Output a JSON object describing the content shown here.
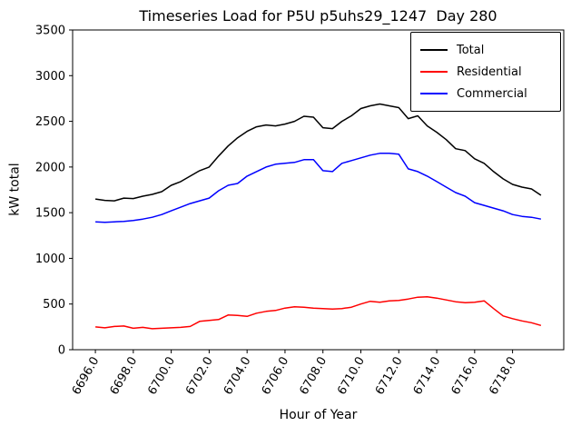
{
  "chart_data": {
    "type": "line",
    "title": "Timeseries Load for P5U p5uhs29_1247  Day 280",
    "xlabel": "Hour of Year",
    "ylabel": "kW total",
    "xlim": [
      6694.8,
      6720.7
    ],
    "ylim": [
      0,
      3500
    ],
    "grid": false,
    "legend_position": "upper right",
    "xticks": [
      6696,
      6698,
      6700,
      6702,
      6704,
      6706,
      6708,
      6710,
      6712,
      6714,
      6716,
      6718
    ],
    "xtick_labels": [
      "6696.0",
      "6698.0",
      "6700.0",
      "6702.0",
      "6704.0",
      "6706.0",
      "6708.0",
      "6710.0",
      "6712.0",
      "6714.0",
      "6716.0",
      "6718.0"
    ],
    "yticks": [
      0,
      500,
      1000,
      1500,
      2000,
      2500,
      3000,
      3500
    ],
    "ytick_labels": [
      "0",
      "500",
      "1000",
      "1500",
      "2000",
      "2500",
      "3000",
      "3500"
    ],
    "x_start": 6696.0,
    "x_step": 0.5,
    "series": [
      {
        "name": "Total",
        "color": "#000000",
        "values": [
          1650,
          1635,
          1630,
          1660,
          1655,
          1680,
          1700,
          1730,
          1800,
          1840,
          1900,
          1960,
          2000,
          2120,
          2230,
          2320,
          2390,
          2440,
          2460,
          2450,
          2470,
          2500,
          2555,
          2545,
          2430,
          2420,
          2500,
          2560,
          2640,
          2670,
          2690,
          2670,
          2650,
          2530,
          2560,
          2450,
          2380,
          2300,
          2200,
          2180,
          2090,
          2040,
          1950,
          1870,
          1810,
          1780,
          1760,
          1690
        ]
      },
      {
        "name": "Residential",
        "color": "#ff0000",
        "values": [
          250,
          240,
          255,
          260,
          235,
          245,
          230,
          235,
          240,
          245,
          255,
          310,
          320,
          330,
          380,
          375,
          365,
          400,
          420,
          430,
          455,
          470,
          465,
          455,
          450,
          445,
          450,
          465,
          500,
          530,
          520,
          535,
          540,
          555,
          575,
          580,
          565,
          545,
          525,
          515,
          520,
          535,
          450,
          370,
          340,
          315,
          295,
          265
        ]
      },
      {
        "name": "Commercial",
        "color": "#0000ff",
        "values": [
          1400,
          1395,
          1400,
          1405,
          1415,
          1430,
          1450,
          1480,
          1520,
          1560,
          1600,
          1630,
          1660,
          1740,
          1800,
          1820,
          1900,
          1950,
          2000,
          2030,
          2040,
          2050,
          2080,
          2080,
          1960,
          1950,
          2040,
          2070,
          2100,
          2130,
          2150,
          2150,
          2140,
          1980,
          1950,
          1900,
          1840,
          1780,
          1720,
          1680,
          1610,
          1580,
          1550,
          1520,
          1480,
          1460,
          1450,
          1430
        ]
      }
    ]
  }
}
